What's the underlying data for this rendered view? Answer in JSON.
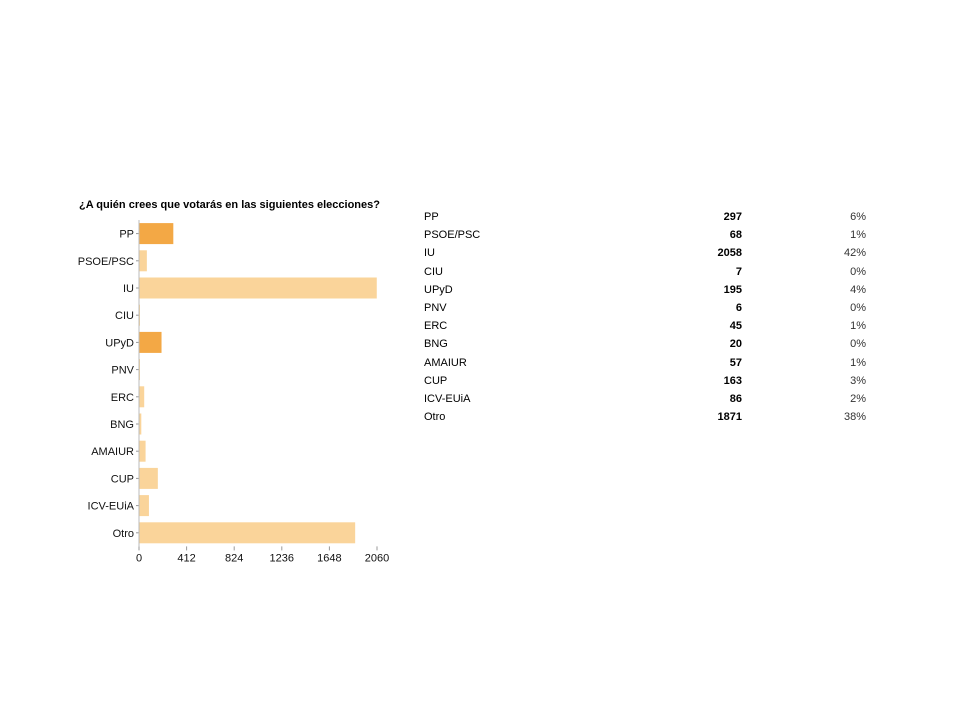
{
  "chart_data": {
    "type": "bar",
    "orientation": "horizontal",
    "title": "¿A quién crees que votarás en las siguientes elecciones?",
    "categories": [
      "PP",
      "PSOE/PSC",
      "IU",
      "CIU",
      "UPyD",
      "PNV",
      "ERC",
      "BNG",
      "AMAIUR",
      "CUP",
      "ICV-EUiA",
      "Otro"
    ],
    "values": [
      297,
      68,
      2058,
      7,
      195,
      6,
      45,
      20,
      57,
      163,
      86,
      1871
    ],
    "percentages": [
      "6%",
      "1%",
      "42%",
      "0%",
      "4%",
      "0%",
      "1%",
      "0%",
      "1%",
      "3%",
      "2%",
      "38%"
    ],
    "xlim": [
      0,
      2060
    ],
    "xticks": [
      "0",
      "412",
      "824",
      "1236",
      "1648",
      "2060"
    ],
    "grid": false,
    "colors": {
      "strong": "#f3a845",
      "light": "#fad49a"
    },
    "highlighted": [
      "PP",
      "UPyD"
    ]
  }
}
